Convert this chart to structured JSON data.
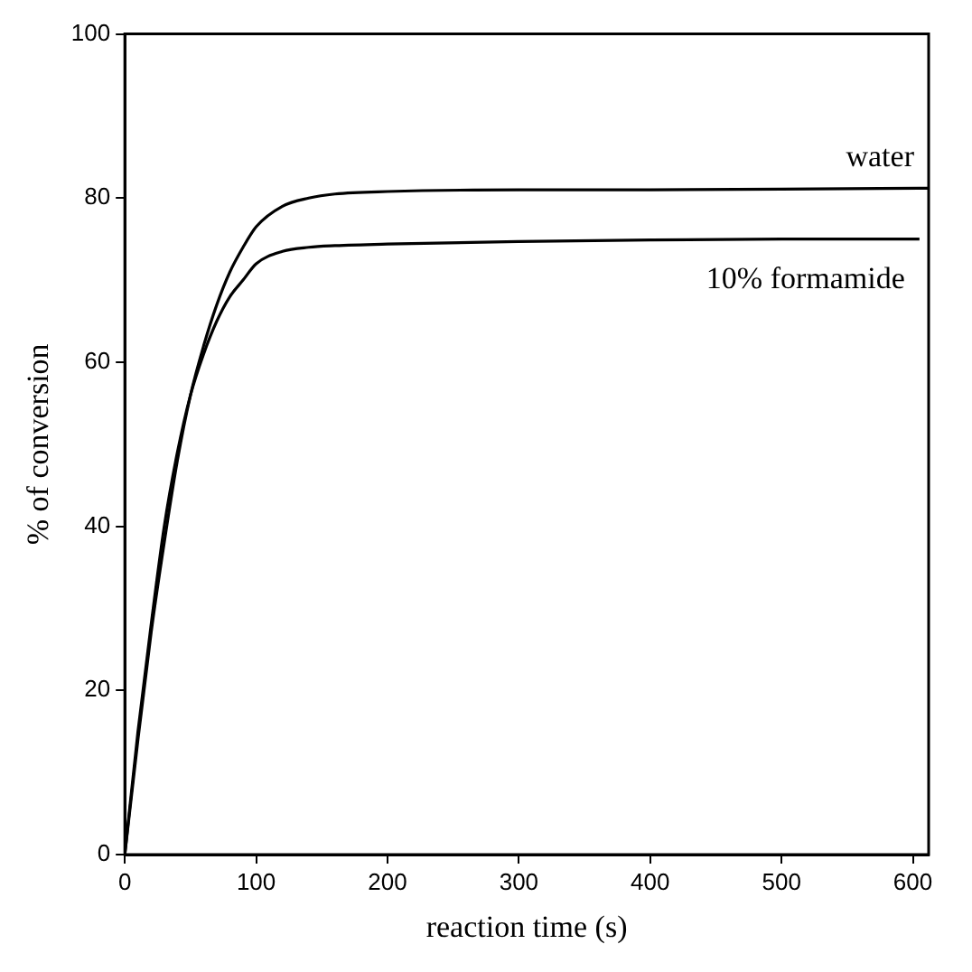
{
  "chart_data": {
    "type": "line",
    "xlabel": "reaction time (s)",
    "ylabel": "% of conversion",
    "xlim": [
      0,
      612
    ],
    "xticks": [
      0,
      100,
      200,
      300,
      400,
      500,
      600
    ],
    "ylim": [
      0,
      100
    ],
    "yticks": [
      0,
      20,
      40,
      60,
      80,
      100
    ],
    "grid": false,
    "legend": false,
    "marker": "none",
    "line_style": "solid",
    "series": [
      {
        "name": "water",
        "color": "#000000",
        "x": [
          0,
          10,
          20,
          30,
          40,
          50,
          60,
          70,
          80,
          90,
          100,
          120,
          140,
          160,
          200,
          300,
          400,
          500,
          612
        ],
        "values": [
          0,
          14,
          27,
          38,
          48,
          56,
          62,
          67,
          71,
          74,
          76.5,
          79,
          80,
          80.5,
          80.8,
          81,
          81,
          81.1,
          81.2
        ]
      },
      {
        "name": "10% formamide",
        "color": "#000000",
        "x": [
          0,
          10,
          20,
          30,
          40,
          50,
          60,
          70,
          80,
          90,
          100,
          120,
          140,
          160,
          200,
          300,
          400,
          500,
          605
        ],
        "values": [
          0,
          15,
          28,
          40,
          49,
          56,
          61,
          65,
          68,
          70,
          72,
          73.5,
          74,
          74.2,
          74.4,
          74.7,
          74.9,
          75,
          75
        ]
      }
    ]
  }
}
